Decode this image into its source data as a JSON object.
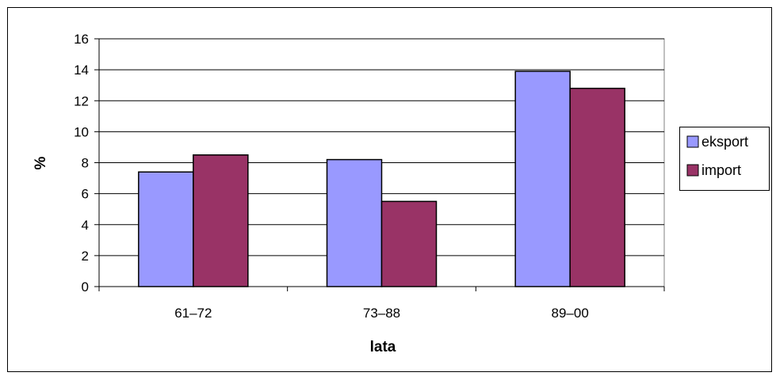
{
  "chart_data": {
    "type": "bar",
    "title": "",
    "xlabel": "lata",
    "ylabel": "%",
    "categories": [
      "61–72",
      "73–88",
      "89–00"
    ],
    "series": [
      {
        "name": "eksport",
        "values": [
          7.4,
          8.2,
          13.9
        ],
        "color": "#9999ff"
      },
      {
        "name": "import",
        "values": [
          8.5,
          5.5,
          12.8
        ],
        "color": "#993366"
      }
    ],
    "ylim": [
      0,
      16
    ],
    "yticks": [
      "0",
      "2",
      "4",
      "6",
      "8",
      "10",
      "12",
      "14",
      "16"
    ],
    "grid": true,
    "legend_position": "right"
  }
}
